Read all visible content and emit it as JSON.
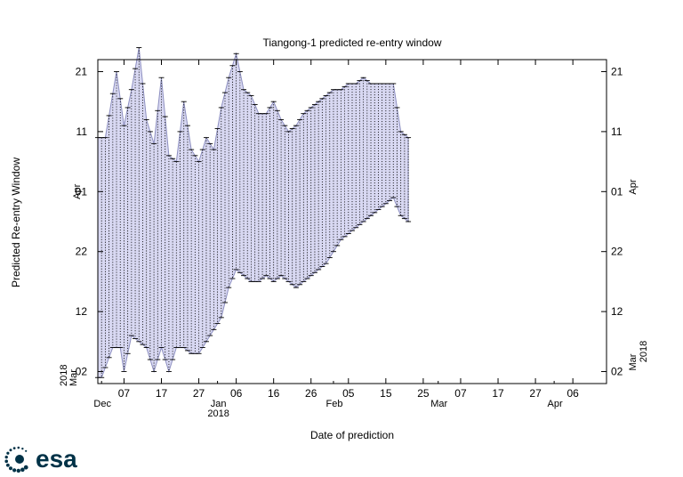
{
  "chart_data": {
    "type": "area",
    "title": "Tiangong-1 predicted re-entry window",
    "xlabel": "Date of prediction",
    "ylabel": "Predicted Re-entry Window",
    "x_range": [
      "2017-11-30",
      "2018-04-15"
    ],
    "y_range": [
      "2018-02-28",
      "2018-04-23"
    ],
    "grid": false,
    "legend": "none",
    "x_ticks": [
      {
        "date": "2017-12-07",
        "label": "07"
      },
      {
        "date": "2017-12-17",
        "label": "17"
      },
      {
        "date": "2017-12-27",
        "label": "27"
      },
      {
        "date": "2018-01-06",
        "label": "06"
      },
      {
        "date": "2018-01-16",
        "label": "16"
      },
      {
        "date": "2018-01-26",
        "label": "26"
      },
      {
        "date": "2018-02-05",
        "label": "05"
      },
      {
        "date": "2018-02-15",
        "label": "15"
      },
      {
        "date": "2018-02-25",
        "label": "25"
      },
      {
        "date": "2018-03-07",
        "label": "07"
      },
      {
        "date": "2018-03-17",
        "label": "17"
      },
      {
        "date": "2018-03-27",
        "label": "27"
      },
      {
        "date": "2018-04-06",
        "label": "06"
      }
    ],
    "x_month_labels": [
      {
        "date": "2017-12-01",
        "label": "Dec"
      },
      {
        "date": "2018-01-01",
        "label": "Jan"
      },
      {
        "date": "2018-02-01",
        "label": "Feb"
      },
      {
        "date": "2018-03-01",
        "label": "Mar"
      },
      {
        "date": "2018-04-01",
        "label": "Apr"
      }
    ],
    "x_year_label": {
      "date": "2018-01-01",
      "label": "2018"
    },
    "y_ticks": [
      {
        "date": "2018-03-02",
        "label": "02"
      },
      {
        "date": "2018-03-12",
        "label": "12"
      },
      {
        "date": "2018-03-22",
        "label": "22"
      },
      {
        "date": "2018-04-01",
        "label": "01"
      },
      {
        "date": "2018-04-11",
        "label": "11"
      },
      {
        "date": "2018-04-21",
        "label": "21"
      }
    ],
    "y_left_month_labels": [
      {
        "date": "2018-03-01",
        "label": "Mar"
      },
      {
        "date": "2018-04-01",
        "label": "Apr"
      }
    ],
    "y_left_year_label": "2018",
    "y_right_month_labels": [
      {
        "date": "2018-03-01",
        "label": "Mar"
      },
      {
        "date": "2018-04-01",
        "label": "Apr"
      }
    ],
    "y_right_year_label": "2018",
    "series": [
      {
        "upper_x": [
          "2017-11-30",
          "2017-12-02",
          "2017-12-05",
          "2017-12-07",
          "2017-12-09",
          "2017-12-11",
          "2017-12-13",
          "2017-12-15",
          "2017-12-17",
          "2017-12-19",
          "2017-12-21",
          "2017-12-23",
          "2017-12-25",
          "2017-12-27",
          "2017-12-29",
          "2017-12-31",
          "2018-01-02",
          "2018-01-04",
          "2018-01-06",
          "2018-01-08",
          "2018-01-10",
          "2018-01-12",
          "2018-01-14",
          "2018-01-16",
          "2018-01-18",
          "2018-01-20",
          "2018-01-22",
          "2018-01-24",
          "2018-01-26",
          "2018-01-28",
          "2018-01-30",
          "2018-02-01",
          "2018-02-03",
          "2018-02-05",
          "2018-02-07",
          "2018-02-09",
          "2018-02-11",
          "2018-02-13",
          "2018-02-15",
          "2018-02-17",
          "2018-02-19",
          "2018-02-21"
        ],
        "upper_y": [
          "2018-04-10",
          "2018-04-10",
          "2018-04-21",
          "2018-04-12",
          "2018-04-18",
          "2018-04-25",
          "2018-04-13",
          "2018-04-09",
          "2018-04-20",
          "2018-04-07",
          "2018-04-06",
          "2018-04-16",
          "2018-04-08",
          "2018-04-06",
          "2018-04-10",
          "2018-04-08",
          "2018-04-15",
          "2018-04-20",
          "2018-04-24",
          "2018-04-18",
          "2018-04-17",
          "2018-04-14",
          "2018-04-14",
          "2018-04-16",
          "2018-04-13",
          "2018-04-11",
          "2018-04-12",
          "2018-04-14",
          "2018-04-15",
          "2018-04-16",
          "2018-04-17",
          "2018-04-18",
          "2018-04-18",
          "2018-04-19",
          "2018-04-19",
          "2018-04-20",
          "2018-04-19",
          "2018-04-19",
          "2018-04-19",
          "2018-04-19",
          "2018-04-11",
          "2018-04-10"
        ],
        "lower_x": [
          "2017-11-30",
          "2017-12-01",
          "2017-12-04",
          "2017-12-06",
          "2017-12-07",
          "2017-12-09",
          "2017-12-13",
          "2017-12-15",
          "2017-12-17",
          "2017-12-19",
          "2017-12-21",
          "2017-12-23",
          "2017-12-25",
          "2017-12-27",
          "2017-12-29",
          "2017-12-31",
          "2018-01-02",
          "2018-01-04",
          "2018-01-06",
          "2018-01-08",
          "2018-01-10",
          "2018-01-12",
          "2018-01-14",
          "2018-01-16",
          "2018-01-18",
          "2018-01-20",
          "2018-01-22",
          "2018-01-24",
          "2018-01-26",
          "2018-01-28",
          "2018-01-30",
          "2018-02-01",
          "2018-02-03",
          "2018-02-05",
          "2018-02-07",
          "2018-02-09",
          "2018-02-11",
          "2018-02-13",
          "2018-02-15",
          "2018-02-17",
          "2018-02-19",
          "2018-02-21"
        ],
        "lower_y": [
          "2018-03-01",
          "2018-03-01",
          "2018-03-06",
          "2018-03-06",
          "2018-03-02",
          "2018-03-08",
          "2018-03-06",
          "2018-03-02",
          "2018-03-06",
          "2018-03-02",
          "2018-03-06",
          "2018-03-06",
          "2018-03-05",
          "2018-03-05",
          "2018-03-07",
          "2018-03-09",
          "2018-03-11",
          "2018-03-16",
          "2018-03-19",
          "2018-03-18",
          "2018-03-17",
          "2018-03-17",
          "2018-03-18",
          "2018-03-17",
          "2018-03-18",
          "2018-03-17",
          "2018-03-16",
          "2018-03-17",
          "2018-03-18",
          "2018-03-19",
          "2018-03-20",
          "2018-03-22",
          "2018-03-24",
          "2018-03-25",
          "2018-03-26",
          "2018-03-27",
          "2018-03-28",
          "2018-03-29",
          "2018-03-30",
          "2018-03-31",
          "2018-03-28",
          "2018-03-27"
        ]
      }
    ],
    "colors": {
      "fill": "#d8d8f2",
      "stroke": "#8d8fc0",
      "bars": "#000000",
      "axes": "#000000"
    }
  },
  "logo": {
    "text": "esa",
    "color": "#003247"
  }
}
